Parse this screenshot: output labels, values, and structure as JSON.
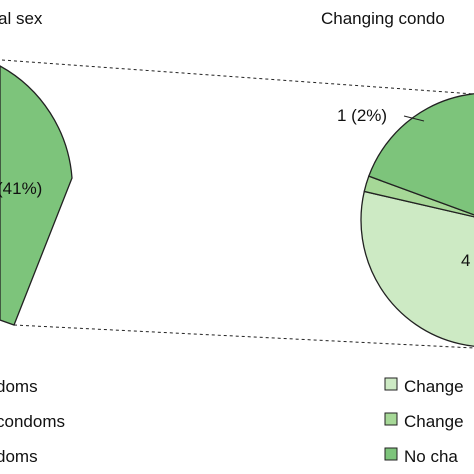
{
  "chart_data": [
    {
      "type": "pie",
      "title": "al sex",
      "series": [
        {
          "label": "(41%)",
          "percent": 41,
          "color": "#7dc47b"
        }
      ],
      "legend": [
        "doms",
        "condoms",
        "doms"
      ],
      "colors": [
        "#cdeac4",
        "#a6d897",
        "#7dc47b"
      ]
    },
    {
      "type": "pie",
      "title": "Changing condo",
      "slices": [
        {
          "label": "4",
          "percent": 75,
          "color": "#cdeac4"
        },
        {
          "label": "1 (2%)",
          "percent": 2,
          "color": "#a6d897"
        },
        {
          "label": "",
          "percent": 23,
          "color": "#7dc47b"
        }
      ],
      "legend": [
        "Change",
        "Change",
        "No cha"
      ]
    }
  ]
}
